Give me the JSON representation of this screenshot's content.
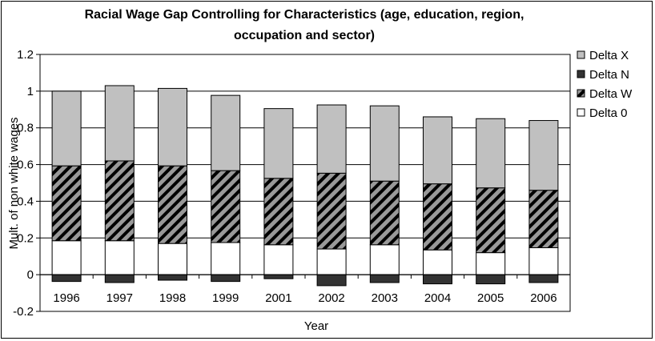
{
  "chart_data": {
    "type": "bar",
    "stacked": true,
    "title": "Racial Wage Gap Controlling for Characteristics (age, education, region, occupation and sector)",
    "xlabel": "Year",
    "ylabel": "Mult. of non white wages",
    "ylim": [
      -0.2,
      1.2
    ],
    "yticks": [
      "-0.2",
      "0",
      "0.2",
      "0.4",
      "0.6",
      "0.8",
      "1",
      "1.2"
    ],
    "grid": true,
    "legend_position": "right",
    "categories": [
      "1996",
      "1997",
      "1998",
      "1999",
      "2001",
      "2002",
      "2003",
      "2004",
      "2005",
      "2006"
    ],
    "series": [
      {
        "name": "Delta 0",
        "color": "#ffffff",
        "pattern": "none",
        "values": [
          0.185,
          0.185,
          0.17,
          0.175,
          0.163,
          0.14,
          0.163,
          0.135,
          0.12,
          0.147
        ]
      },
      {
        "name": "Delta W",
        "color": "#999999",
        "pattern": "diagonal-stripes",
        "values": [
          0.408,
          0.435,
          0.423,
          0.392,
          0.362,
          0.413,
          0.347,
          0.36,
          0.353,
          0.313
        ]
      },
      {
        "name": "Delta X",
        "color": "#c0c0c0",
        "pattern": "none",
        "values": [
          0.407,
          0.41,
          0.422,
          0.41,
          0.38,
          0.372,
          0.41,
          0.365,
          0.377,
          0.38
        ]
      },
      {
        "name": "Delta N",
        "color": "#333333",
        "pattern": "none",
        "values": [
          -0.037,
          -0.043,
          -0.03,
          -0.037,
          -0.022,
          -0.06,
          -0.043,
          -0.05,
          -0.05,
          -0.043
        ]
      }
    ],
    "legend_order": [
      "Delta X",
      "Delta N",
      "Delta W",
      "Delta 0"
    ]
  }
}
